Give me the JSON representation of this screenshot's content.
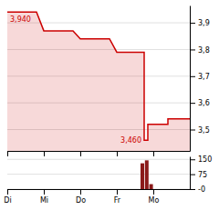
{
  "chart_data": [
    {
      "type": "area",
      "x": [
        0,
        0.8,
        1,
        1.8,
        2,
        2.8,
        3,
        3.75,
        3.75,
        3.85,
        3.85,
        4.4,
        4.4,
        5
      ],
      "values": [
        3.94,
        3.94,
        3.87,
        3.87,
        3.84,
        3.84,
        3.79,
        3.79,
        3.46,
        3.46,
        3.52,
        3.52,
        3.54,
        3.54
      ],
      "color": "#cc0000",
      "xlim": [
        0,
        5
      ],
      "xticks": [
        0,
        1,
        2,
        3,
        4
      ],
      "ylim": [
        3.42,
        3.965
      ],
      "yticks": [
        {
          "value": 3.5,
          "label": "3,5"
        },
        {
          "value": 3.6,
          "label": "3,6"
        },
        {
          "value": 3.7,
          "label": "3,7"
        },
        {
          "value": 3.8,
          "label": "3,8"
        },
        {
          "value": 3.9,
          "label": "3,9"
        }
      ],
      "grid": true,
      "tick_labels": "y",
      "annotations": [
        {
          "text": "3,940",
          "x": 0,
          "y": 3.94
        },
        {
          "text": "3,460",
          "x": 3.75,
          "y": 3.46
        }
      ]
    },
    {
      "type": "bar",
      "x": [
        3.7,
        3.82,
        3.94
      ],
      "values": [
        130,
        145,
        25
      ],
      "color": "#8b1a1a",
      "xlim": [
        0,
        5
      ],
      "xticks": [
        {
          "value": 0,
          "label": "Di"
        },
        {
          "value": 1,
          "label": "Mi"
        },
        {
          "value": 2,
          "label": "Do"
        },
        {
          "value": 3,
          "label": "Fr"
        },
        {
          "value": 4,
          "label": "Mo"
        }
      ],
      "ylim": [
        0,
        165
      ],
      "yticks": [
        {
          "value": 0,
          "label": "-0"
        },
        75,
        150
      ],
      "grid": true
    }
  ]
}
